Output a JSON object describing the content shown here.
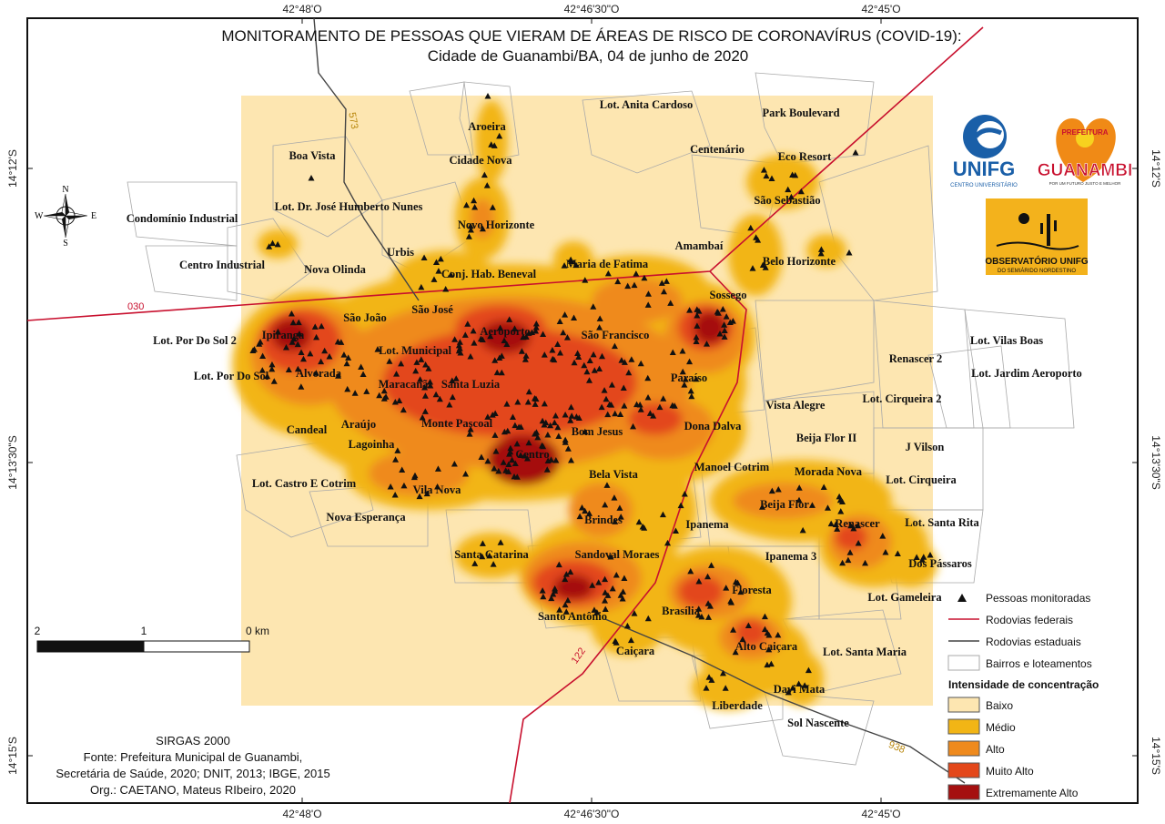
{
  "title": {
    "line1": "MONITORAMENTO DE PESSOAS QUE VIERAM DE ÁREAS DE RISCO DE CORONAVÍRUS (COVID-19):",
    "line2": "Cidade de Guanambi/BA, 04 de junho de 2020"
  },
  "coords": {
    "top": [
      "42°48'O",
      "42°46'30\"O",
      "42°45'O"
    ],
    "bottom": [
      "42°48'O",
      "42°46'30\"O",
      "42°45'O"
    ],
    "left": [
      "14°12'S",
      "14°13'30\"S",
      "14°15'S"
    ],
    "right": [
      "14°12'S",
      "14°13'30\"S",
      "14°15'S"
    ]
  },
  "compass": {
    "n": "N",
    "s": "S",
    "e": "E",
    "w": "W"
  },
  "scale": {
    "labels": [
      "2",
      "1",
      "0 km"
    ]
  },
  "roads": {
    "federal": [
      "030",
      "122"
    ],
    "state": [
      "573",
      "938"
    ]
  },
  "neighborhoods": [
    "Lot. Anita Cardoso",
    "Park Boulevard",
    "Aroeira",
    "Cidade Nova",
    "Boa Vista",
    "Centenário",
    "Eco Resort",
    "São Sebastião",
    "Lot. Dr. José Humberto Nunes",
    "Novo Horizonte",
    "Condomínio Industrial",
    "Urbis",
    "Amambaí",
    "Centro Industrial",
    "Nova Olinda",
    "Conj. Hab. Beneval",
    "Maria de Fatima",
    "Belo Horizonte",
    "Sossego",
    "São João",
    "São José",
    "Lot. Por Do Sol 2",
    "Ipiranga",
    "Lot. Municipal",
    "Aeroporto",
    "São Francisco",
    "Alvorada",
    "Lot. Por Do Sol",
    "Maracanã",
    "Santa Luzia",
    "Paraíso",
    "Renascer 2",
    "Lot. Vilas Boas",
    "Lot. Jardim Aeroporto",
    "Vista Alegre",
    "Lot. Cirqueira 2",
    "Candeal",
    "Araújo",
    "Monte Pascoal",
    "Bom Jesus",
    "Dona Dalva",
    "Lagoinha",
    "Beija Flor II",
    "J Vilson",
    "Centro",
    "Bela Vista",
    "Manoel Cotrim",
    "Morada Nova",
    "Lot. Castro E Cotrim",
    "Lot. Cirqueira",
    "Vila Nova",
    "Beija Flor",
    "Nova Esperança",
    "Brindes",
    "Ipanema",
    "Renascer",
    "Lot. Santa Rita",
    "Santa Catarina",
    "Sandoval Moraes",
    "Ipanema 3",
    "Dos Pássaros",
    "Floresta",
    "Brasília",
    "Lot. Gameleira",
    "Santo Antônio",
    "Alto Caiçara",
    "Caiçara",
    "Lot. Santa Maria",
    "Davi Mata",
    "Liberdade",
    "Sol Nascente"
  ],
  "legend": {
    "symbols": [
      "Pessoas monitoradas",
      "Rodovias federais",
      "Rodovias estaduais",
      "Bairros e loteamentos"
    ],
    "heading": "Intensidade de concentração",
    "classes": [
      {
        "label": "Baixo",
        "color": "#fde6b1"
      },
      {
        "label": "Médio",
        "color": "#f2b515"
      },
      {
        "label": "Alto",
        "color": "#ef8a1d"
      },
      {
        "label": "Muito Alto",
        "color": "#e3471a"
      },
      {
        "label": "Extremamente Alto",
        "color": "#a50f0f"
      }
    ]
  },
  "logos": {
    "unifg": {
      "name": "UNIFG",
      "tagline": "CENTRO UNIVERSITÁRIO"
    },
    "prefeitura": {
      "top": "PREFEITURA",
      "name": "GUANAMBI",
      "tagline": "POR UM FUTURO JUSTO E MELHOR"
    },
    "observatorio": {
      "name": "OBSERVATÓRIO UNIFG",
      "tagline": "DO SEMIÁRIDO NORDESTINO"
    }
  },
  "source": {
    "lines": [
      "SIRGAS 2000",
      "Fonte: Prefeitura Municipal de Guanambi,",
      "Secretária de Saúde, 2020; DNIT, 2013; IBGE, 2015",
      "Org.: CAETANO, Mateus RIbeiro, 2020"
    ]
  },
  "colors": {
    "baixo": "#fde6b1",
    "medio": "#f2b515",
    "alto": "#ef8a1d",
    "muito_alto": "#e3471a",
    "extremamente_alto": "#a50f0f",
    "federal_road": "#c8102e",
    "state_road": "#444444"
  }
}
